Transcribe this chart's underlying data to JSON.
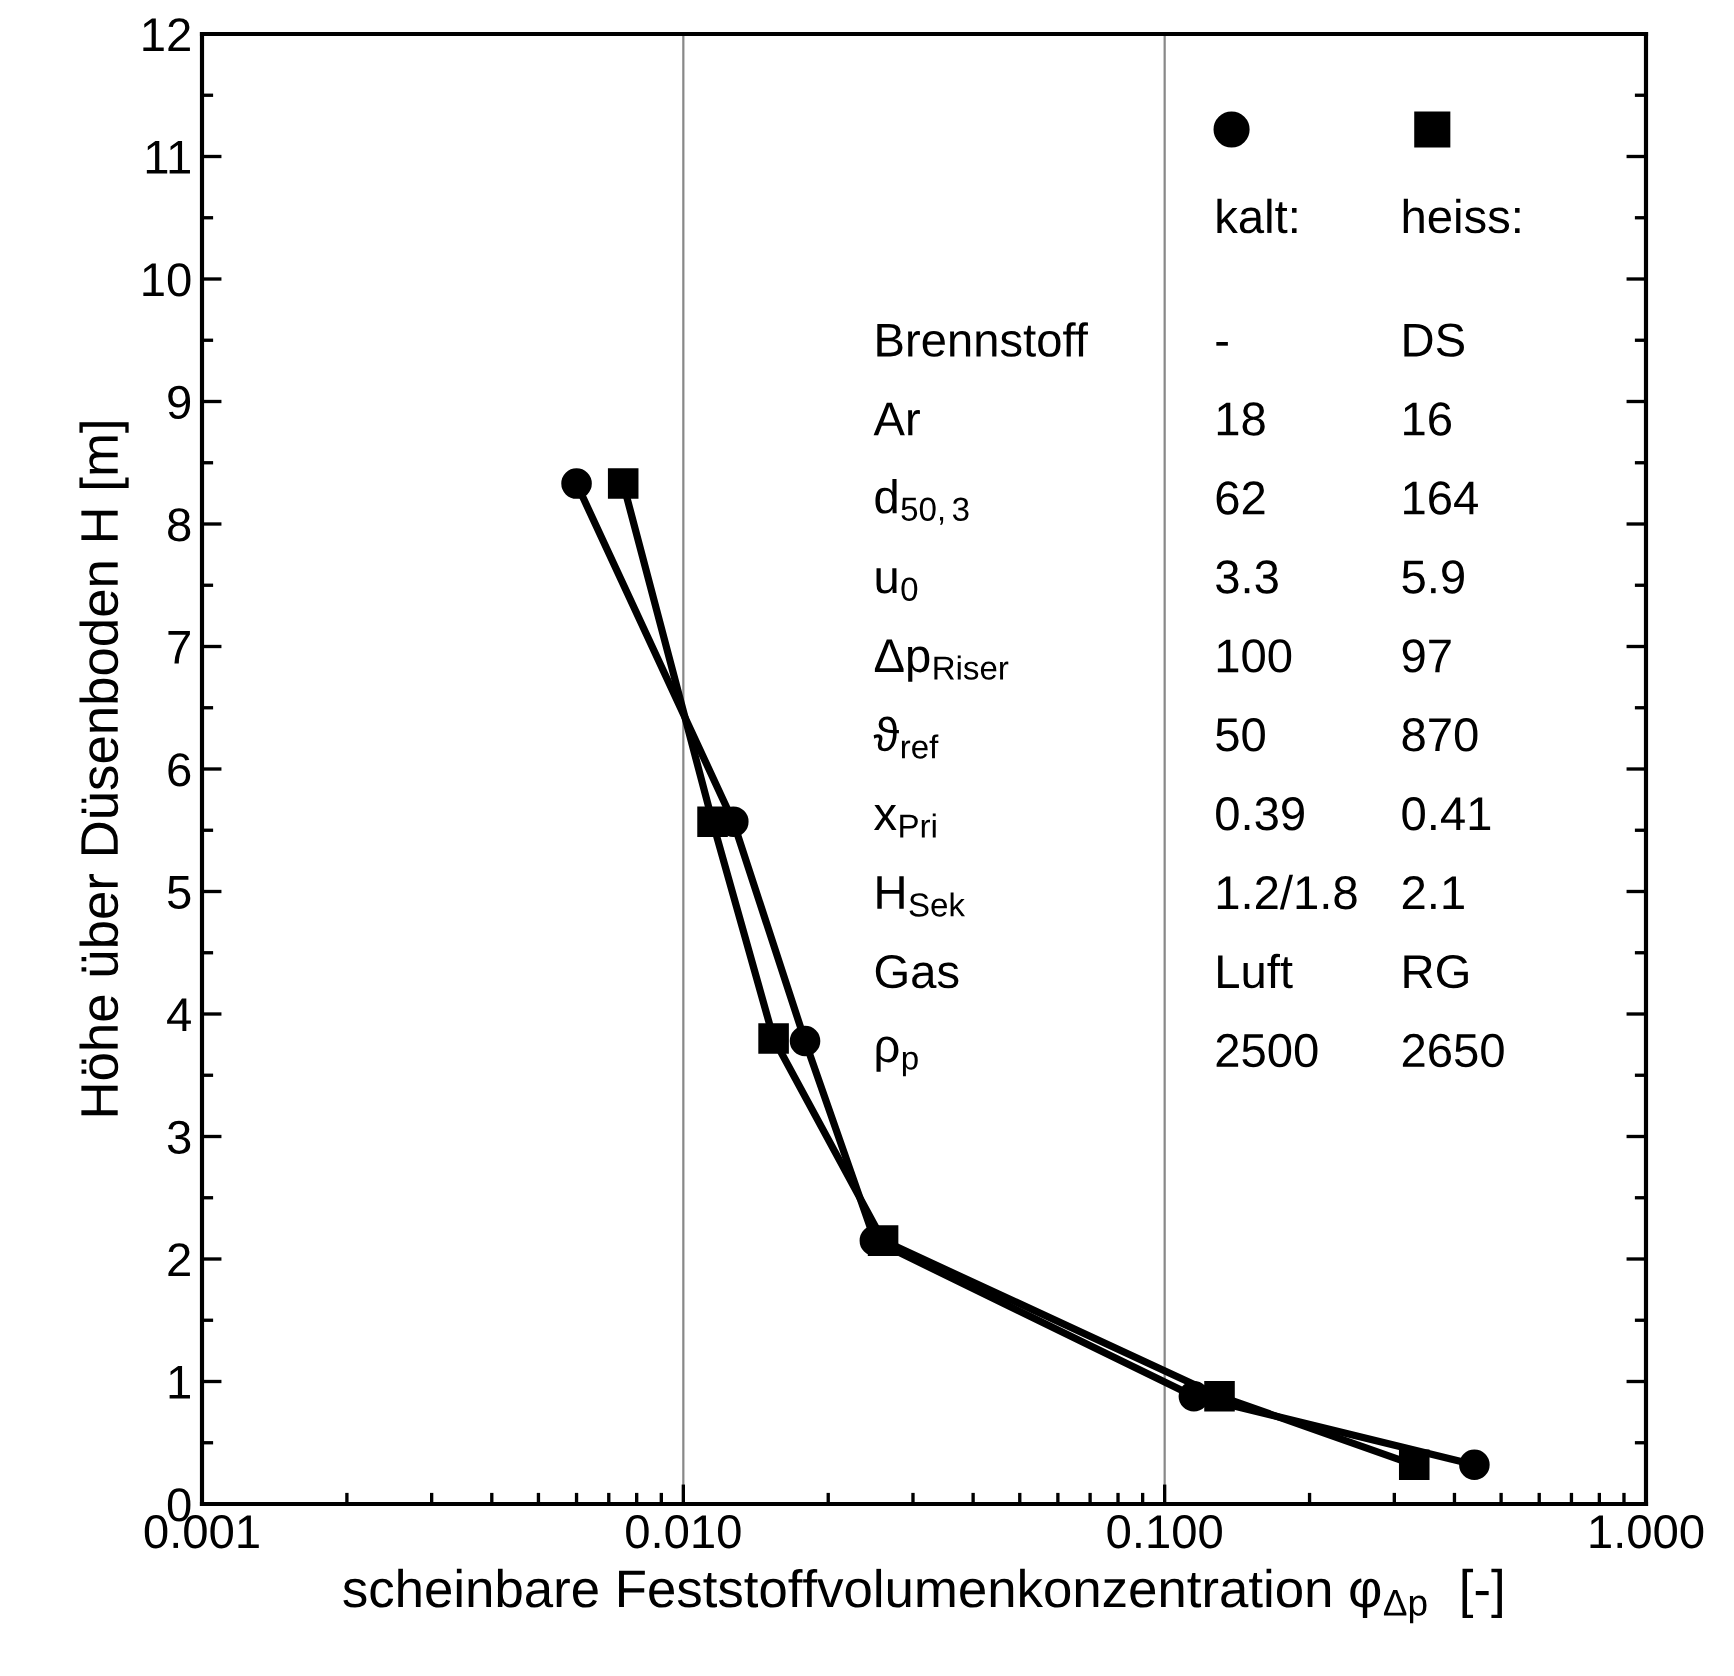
{
  "chart_data": {
    "type": "line",
    "xlabel": "scheinbare Feststoffvolumenkonzentration φ$_{Δp}$  [-]",
    "ylabel": "Höhe über Düsenboden H [m]",
    "log": "x",
    "xlim": [
      0.001,
      1
    ],
    "xticks": [
      {
        "value": 0.001,
        "label": "0.001"
      },
      {
        "value": 0.01,
        "label": "0.010"
      },
      {
        "value": 0.1,
        "label": "0.100"
      },
      {
        "value": 1,
        "label": "1.000"
      }
    ],
    "ylim": [
      0,
      12
    ],
    "yticks": [
      0,
      1,
      2,
      3,
      4,
      5,
      6,
      7,
      8,
      9,
      10,
      11,
      12
    ],
    "grid": "x",
    "legend": "top right",
    "line_style": "solid",
    "series": [
      {
        "name": "kalt:",
        "color": "#000000",
        "marker": "circle",
        "x": [
          0.006,
          0.0127,
          0.0179,
          0.025,
          0.115,
          0.44
        ],
        "values": [
          8.33,
          5.57,
          3.78,
          2.15,
          0.88,
          0.32
        ]
      },
      {
        "name": "heiss:",
        "color": "#000000",
        "marker": "square",
        "x": [
          0.0075,
          0.0115,
          0.0154,
          0.026,
          0.13,
          0.33
        ],
        "values": [
          8.33,
          5.57,
          3.8,
          2.15,
          0.88,
          0.32
        ]
      }
    ],
    "annotations": [
      "Brennstoff",
      "-",
      "DS",
      "Ar",
      "18",
      "16",
      "d$_{50,3}$",
      "62",
      "164",
      "u$_{0}$",
      "3.3",
      "5.9",
      "Δp$_{Riser}$",
      "100",
      "97",
      "ϑ$_{ref}$",
      "50",
      "870",
      "x$_{Pri}$",
      "0.39",
      "0.41",
      "H$_{Sek}$",
      "1.2/1.8",
      "2.1",
      "Gas",
      "Luft",
      "RG",
      "ρ$_{p}$",
      "2500",
      "2650"
    ]
  }
}
